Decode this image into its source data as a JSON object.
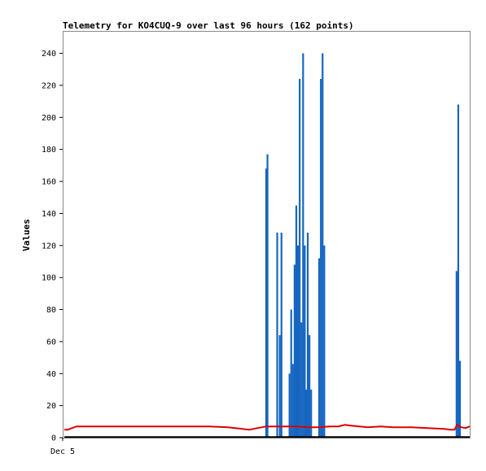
{
  "chart_data": {
    "type": "line",
    "title": "Telemetry for KO4CUQ-9 over last 96 hours (162 points)",
    "xlabel": "",
    "ylabel": "Values",
    "ylim": [
      0,
      254
    ],
    "yticks": [
      0,
      20,
      40,
      60,
      80,
      100,
      120,
      140,
      160,
      180,
      200,
      220,
      240
    ],
    "xticks": [
      {
        "x": 0,
        "label": "Dec 5"
      }
    ],
    "xlim": [
      0,
      96
    ],
    "grid": false,
    "colors": {
      "blue": "#1565c0",
      "red": "#dd0000",
      "black": "#000000"
    },
    "series": [
      {
        "color": "#1565c0",
        "style": "spikes",
        "x": [
          48.0,
          48.3,
          50.6,
          51.2,
          51.6,
          53.5,
          53.9,
          54.3,
          54.7,
          55.1,
          55.5,
          55.9,
          56.3,
          56.7,
          57.1,
          57.4,
          57.8,
          58.2,
          58.6,
          59.0,
          60.5,
          60.9,
          61.3,
          61.7,
          62.1,
          62.5,
          63.3,
          63.7,
          64.1,
          92.9,
          93.3,
          93.7
        ],
        "values": [
          168,
          177,
          128,
          64,
          128,
          40,
          80,
          46,
          108,
          145,
          120,
          224,
          72,
          240,
          120,
          30,
          128,
          64,
          30,
          0,
          112,
          224,
          240,
          120,
          0,
          0,
          0,
          0,
          0,
          104,
          208,
          48
        ]
      },
      {
        "color": "#dd0000",
        "style": "line",
        "x": [
          0.4,
          1.2,
          2.2,
          3.3,
          5.0,
          10.0,
          15.0,
          20.0,
          25.0,
          30.0,
          34.5,
          39.0,
          44.0,
          46.0,
          48.0,
          52.0,
          55.0,
          58.0,
          60.0,
          63.0,
          65.0,
          66.5,
          68.0,
          72.0,
          75.0,
          78.0,
          82.0,
          86.0,
          90.0,
          91.5,
          92.0,
          92.4,
          93.0,
          94.0,
          95.0,
          96.0
        ],
        "values": [
          5,
          5,
          6,
          7,
          7,
          7,
          7,
          7,
          7,
          7,
          7,
          6.5,
          5,
          6,
          7,
          7,
          7,
          6.5,
          6.5,
          7,
          7,
          8,
          7.5,
          6.5,
          7,
          6.5,
          6.5,
          6,
          5.5,
          5,
          5,
          5,
          8,
          6.5,
          6,
          7
        ]
      },
      {
        "color": "#000000",
        "style": "line",
        "x": [
          0.4,
          96.0
        ],
        "values": [
          0.4,
          0.4
        ]
      }
    ]
  }
}
